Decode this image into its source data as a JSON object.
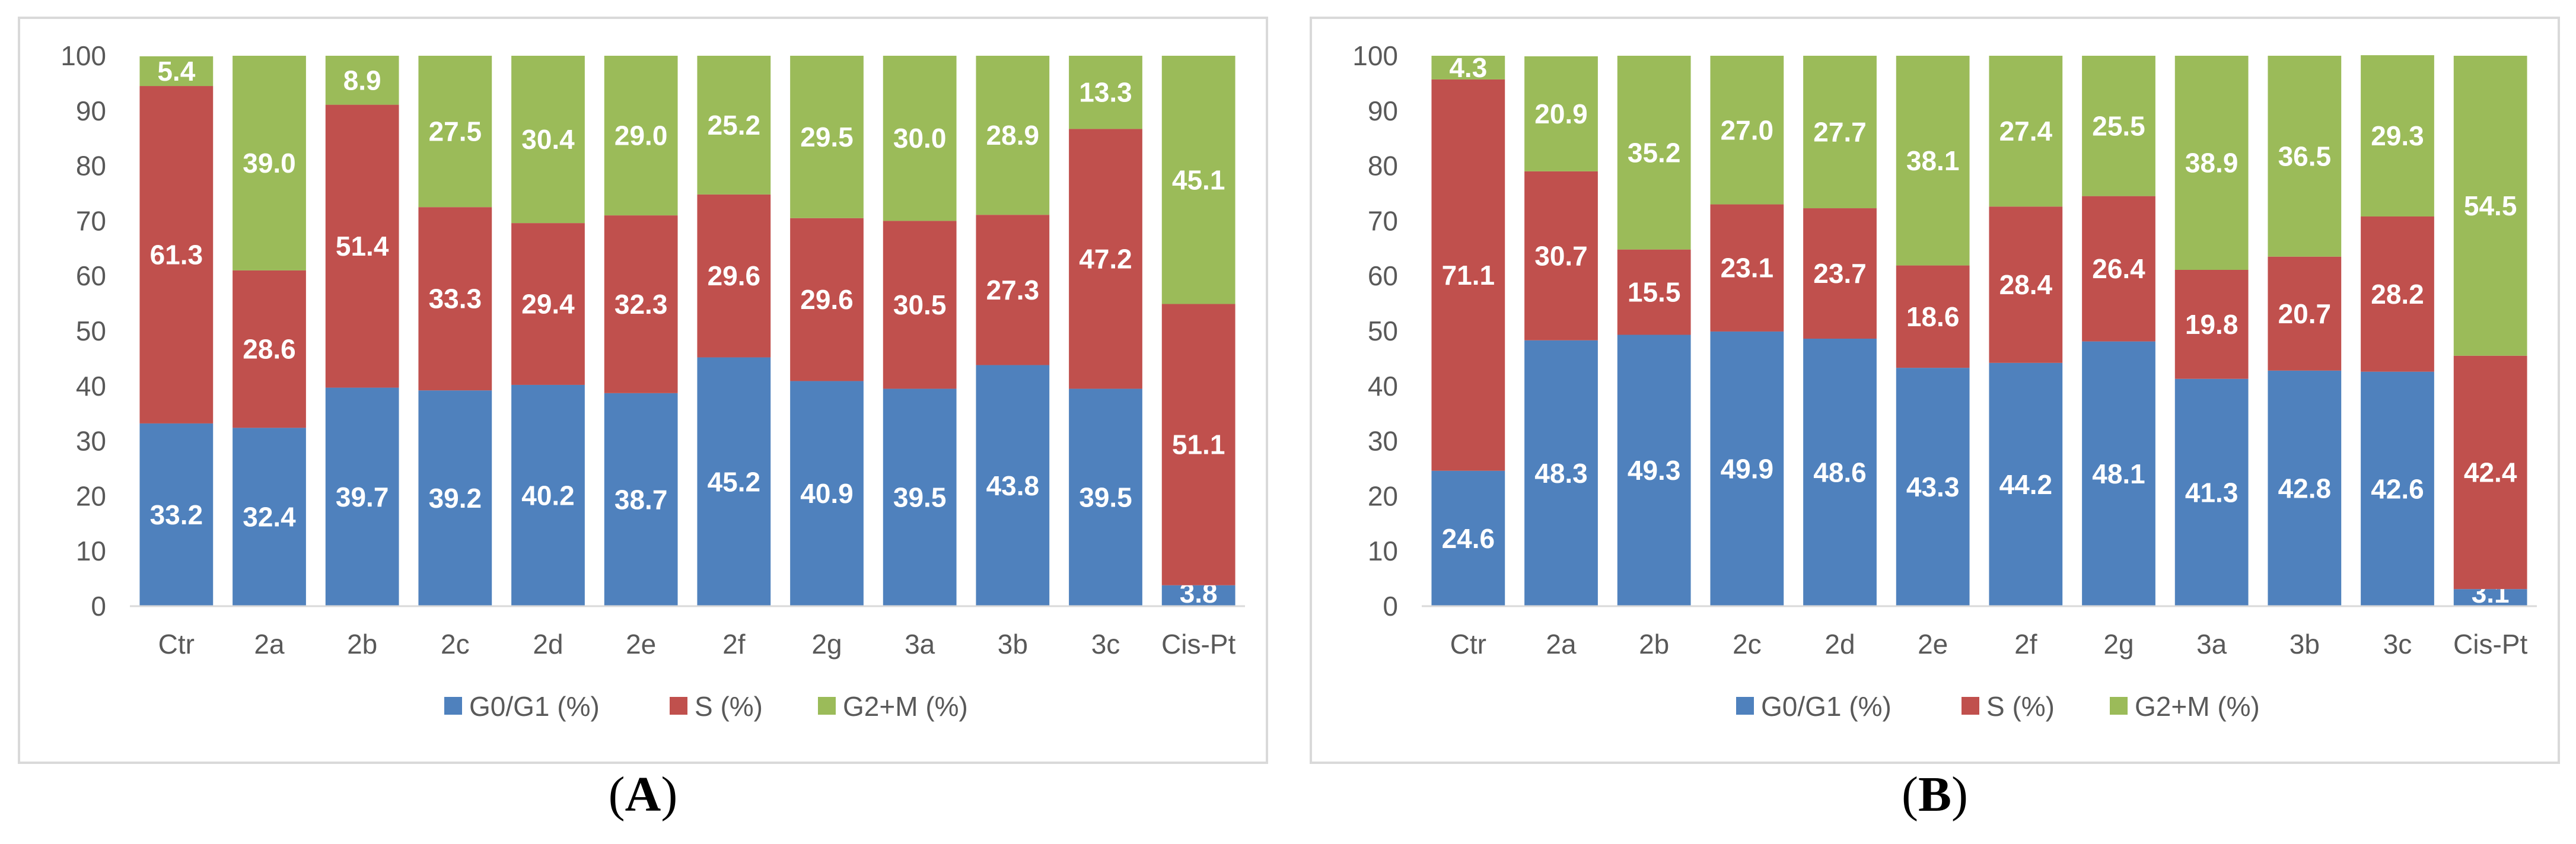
{
  "chart_data": [
    {
      "type": "bar",
      "stacked": true,
      "panel_label": "A",
      "categories": [
        "Ctr",
        "2a",
        "2b",
        "2c",
        "2d",
        "2e",
        "2f",
        "2g",
        "3a",
        "3b",
        "3c",
        "Cis-Pt"
      ],
      "series": [
        {
          "name": "G0/G1  (%)",
          "color": "#4f81bd",
          "values": [
            33.2,
            32.4,
            39.7,
            39.2,
            40.2,
            38.7,
            45.2,
            40.9,
            39.5,
            43.8,
            39.5,
            3.8
          ]
        },
        {
          "name": "S (%)",
          "color": "#c0504d",
          "values": [
            61.3,
            28.6,
            51.4,
            33.3,
            29.4,
            32.3,
            29.6,
            29.6,
            30.5,
            27.3,
            47.2,
            51.1
          ]
        },
        {
          "name": "G2+M (%)",
          "color": "#9bbb59",
          "values": [
            5.4,
            39.0,
            8.9,
            27.5,
            30.4,
            29.0,
            25.2,
            29.5,
            30.0,
            28.9,
            13.3,
            45.1
          ]
        }
      ],
      "data_labels": [
        [
          "33.2",
          "32.4",
          "39.7",
          "39.2",
          "40.2",
          "38.7",
          "45.2",
          "40.9",
          "39.5",
          "43.8",
          "39.5",
          "3.8"
        ],
        [
          "61.3",
          "28.6",
          "51.4",
          "33.3",
          "29.4",
          "32.3",
          "29.6",
          "29.6",
          "30.5",
          "27.3",
          "47.2",
          "51.1"
        ],
        [
          "5.4",
          "39.0",
          "8.9",
          "27.5",
          "30.4",
          "29.0",
          "25.2",
          "29.5",
          "30.0",
          "28.9",
          "13.3",
          "45.1"
        ]
      ],
      "yticks": [
        "0",
        "10",
        "20",
        "30",
        "40",
        "50",
        "60",
        "70",
        "80",
        "90",
        "100"
      ],
      "ylim": [
        0,
        100
      ],
      "title": "",
      "xlabel": "",
      "ylabel": "",
      "grid": false,
      "legend_position": "bottom"
    },
    {
      "type": "bar",
      "stacked": true,
      "panel_label": "B",
      "categories": [
        "Ctr",
        "2a",
        "2b",
        "2c",
        "2d",
        "2e",
        "2f",
        "2g",
        "3a",
        "3b",
        "3c",
        "Cis-Pt"
      ],
      "series": [
        {
          "name": "G0/G1  (%)",
          "color": "#4f81bd",
          "values": [
            24.6,
            48.3,
            49.3,
            49.9,
            48.6,
            43.3,
            44.2,
            48.1,
            41.3,
            42.8,
            42.6,
            3.1
          ]
        },
        {
          "name": "S (%)",
          "color": "#c0504d",
          "values": [
            71.1,
            30.7,
            15.5,
            23.1,
            23.7,
            18.6,
            28.4,
            26.4,
            19.8,
            20.7,
            28.2,
            42.4
          ]
        },
        {
          "name": "G2+M (%)",
          "color": "#9bbb59",
          "values": [
            4.3,
            20.9,
            35.2,
            27.0,
            27.7,
            38.1,
            27.4,
            25.5,
            38.9,
            36.5,
            29.3,
            54.5
          ]
        }
      ],
      "data_labels": [
        [
          "24.6",
          "48.3",
          "49.3",
          "49.9",
          "48.6",
          "43.3",
          "44.2",
          "48.1",
          "41.3",
          "42.8",
          "42.6",
          "3.1"
        ],
        [
          "71.1",
          "30.7",
          "15.5",
          "23.1",
          "23.7",
          "18.6",
          "28.4",
          "26.4",
          "19.8",
          "20.7",
          "28.2",
          "42.4"
        ],
        [
          "4.3",
          "20.9",
          "35.2",
          "27.0",
          "27.7",
          "38.1",
          "27.4",
          "25.5",
          "38.9",
          "36.5",
          "29.3",
          "54.5"
        ]
      ],
      "yticks": [
        "0",
        "10",
        "20",
        "30",
        "40",
        "50",
        "60",
        "70",
        "80",
        "90",
        "100"
      ],
      "ylim": [
        0,
        100
      ],
      "title": "",
      "xlabel": "",
      "ylabel": "",
      "grid": false,
      "legend_position": "bottom"
    }
  ]
}
